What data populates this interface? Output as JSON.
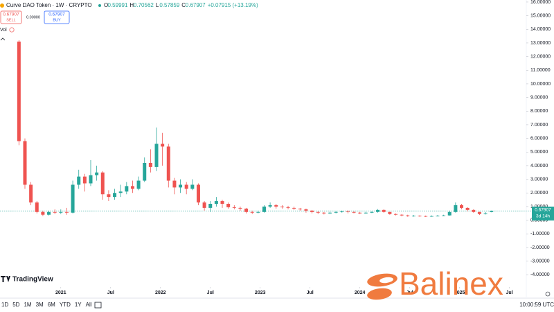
{
  "header": {
    "symbol": "Curve DAO Token · 1W · CRYPTO",
    "ohlc": [
      {
        "key": "O",
        "value": "0.59991"
      },
      {
        "key": "H",
        "value": "0.70562"
      },
      {
        "key": "L",
        "value": "0.57859"
      },
      {
        "key": "C",
        "value": "0.67907"
      }
    ],
    "change": "+0.07915 (+13.19%)"
  },
  "trade": {
    "sell_price": "0.67907",
    "sell": "SELL",
    "spread": "0.00000",
    "buy_price": "0.67907",
    "buy": "BUY"
  },
  "volume_label": "Vol",
  "price_tag": {
    "price": "0.67907",
    "countdown": "3d 14h"
  },
  "brand": "TradingView",
  "watermark": "Balinex",
  "toolbar": {
    "ranges": [
      "1D",
      "5D",
      "1M",
      "3M",
      "6M",
      "YTD",
      "1Y",
      "All"
    ],
    "time": "10:00:59 UTC"
  },
  "chart_data": {
    "type": "candlestick",
    "up_color": "#26a69a",
    "down_color": "#ef5350",
    "last_price": 0.67907,
    "grid": false,
    "xlim": [
      2020.39,
      2025.6
    ],
    "ylim": [
      -4.7,
      16.15
    ],
    "xticks": [
      {
        "value": 2021,
        "label": "2021"
      },
      {
        "value": 2021.5,
        "label": "Jul"
      },
      {
        "value": 2022,
        "label": "2022"
      },
      {
        "value": 2022.5,
        "label": "Jul"
      },
      {
        "value": 2023,
        "label": "2023"
      },
      {
        "value": 2023.5,
        "label": "Jul"
      },
      {
        "value": 2024,
        "label": "2024"
      },
      {
        "value": 2024.5,
        "label": "Jul"
      },
      {
        "value": 2025,
        "label": "2025"
      },
      {
        "value": 2025.5,
        "label": "Jul"
      }
    ],
    "yticks": [
      {
        "value": 16,
        "label": "16.00000"
      },
      {
        "value": 15,
        "label": "15.00000"
      },
      {
        "value": 14,
        "label": "14.00000"
      },
      {
        "value": 13,
        "label": "13.00000"
      },
      {
        "value": 12,
        "label": "12.00000"
      },
      {
        "value": 11,
        "label": "11.00000"
      },
      {
        "value": 10,
        "label": "10.00000"
      },
      {
        "value": 9,
        "label": "9.00000"
      },
      {
        "value": 8,
        "label": "8.00000"
      },
      {
        "value": 7,
        "label": "7.00000"
      },
      {
        "value": 6,
        "label": "6.00000"
      },
      {
        "value": 5,
        "label": "5.00000"
      },
      {
        "value": 4,
        "label": "4.00000"
      },
      {
        "value": 3,
        "label": "3.00000"
      },
      {
        "value": 2,
        "label": "2.00000"
      },
      {
        "value": 1,
        "label": "1.00000"
      },
      {
        "value": 0,
        "label": "0.00000"
      },
      {
        "value": -1,
        "label": "-1.00000"
      },
      {
        "value": -2,
        "label": "-2.00000"
      },
      {
        "value": -3,
        "label": "-3.00000"
      },
      {
        "value": -4,
        "label": "-4.00000"
      }
    ],
    "x": [
      2020.58,
      2020.64,
      2020.7,
      2020.76,
      2020.82,
      2020.88,
      2020.94,
      2021.0,
      2021.06,
      2021.12,
      2021.18,
      2021.24,
      2021.3,
      2021.36,
      2021.42,
      2021.48,
      2021.54,
      2021.6,
      2021.66,
      2021.72,
      2021.78,
      2021.84,
      2021.9,
      2021.96,
      2022.02,
      2022.08,
      2022.14,
      2022.2,
      2022.26,
      2022.32,
      2022.38,
      2022.44,
      2022.5,
      2022.56,
      2022.62,
      2022.68,
      2022.74,
      2022.8,
      2022.86,
      2022.92,
      2022.98,
      2023.04,
      2023.1,
      2023.16,
      2023.22,
      2023.28,
      2023.34,
      2023.4,
      2023.46,
      2023.52,
      2023.58,
      2023.64,
      2023.7,
      2023.76,
      2023.82,
      2023.88,
      2023.94,
      2024.0,
      2024.06,
      2024.12,
      2024.18,
      2024.24,
      2024.3,
      2024.36,
      2024.42,
      2024.48,
      2024.54,
      2024.6,
      2024.66,
      2024.72,
      2024.78,
      2024.84,
      2024.9,
      2024.96,
      2025.02,
      2025.08,
      2025.14,
      2025.2,
      2025.26,
      2025.32
    ],
    "open": [
      13.1,
      5.8,
      2.6,
      1.3,
      0.6,
      0.4,
      0.6,
      0.55,
      0.6,
      0.55,
      2.6,
      3.2,
      2.7,
      3.3,
      3.5,
      1.9,
      1.7,
      2.0,
      2.1,
      2.5,
      2.3,
      2.9,
      4.2,
      3.9,
      5.6,
      5.4,
      2.9,
      2.4,
      2.6,
      2.3,
      2.6,
      1.3,
      0.9,
      1.2,
      1.4,
      1.2,
      0.95,
      0.9,
      0.85,
      0.6,
      0.55,
      0.6,
      1.0,
      1.1,
      1.0,
      0.95,
      0.9,
      0.85,
      0.8,
      0.7,
      0.6,
      0.55,
      0.5,
      0.55,
      0.6,
      0.65,
      0.6,
      0.55,
      0.5,
      0.55,
      0.6,
      0.75,
      0.6,
      0.45,
      0.4,
      0.35,
      0.3,
      0.32,
      0.3,
      0.28,
      0.3,
      0.32,
      0.35,
      0.6,
      1.1,
      0.9,
      0.75,
      0.6,
      0.45,
      0.59991
    ],
    "high": [
      13.2,
      6.0,
      2.8,
      1.4,
      0.7,
      0.7,
      0.8,
      0.8,
      0.9,
      2.9,
      3.7,
      3.4,
      4.4,
      4.0,
      3.6,
      2.2,
      2.3,
      2.6,
      2.8,
      2.9,
      3.2,
      4.6,
      5.2,
      6.8,
      6.4,
      5.6,
      3.1,
      3.0,
      2.8,
      3.0,
      2.7,
      1.4,
      1.4,
      1.7,
      1.5,
      1.3,
      1.1,
      1.0,
      0.9,
      0.7,
      0.7,
      1.1,
      1.3,
      1.2,
      1.1,
      1.05,
      1.0,
      0.9,
      0.85,
      0.75,
      0.65,
      0.6,
      0.62,
      0.66,
      0.7,
      0.72,
      0.65,
      0.6,
      0.62,
      0.65,
      0.82,
      0.8,
      0.62,
      0.5,
      0.45,
      0.4,
      0.38,
      0.36,
      0.34,
      0.35,
      0.38,
      0.4,
      0.7,
      1.3,
      1.2,
      0.95,
      0.8,
      0.62,
      0.6,
      0.70562
    ],
    "low": [
      5.5,
      2.3,
      1.1,
      0.5,
      0.3,
      0.35,
      0.45,
      0.45,
      0.4,
      0.5,
      2.3,
      2.1,
      2.5,
      2.9,
      1.5,
      1.4,
      1.5,
      1.7,
      1.9,
      2.0,
      2.2,
      2.8,
      3.5,
      3.6,
      4.0,
      2.4,
      1.9,
      2.0,
      1.9,
      2.2,
      1.1,
      0.7,
      0.6,
      1.0,
      0.9,
      0.85,
      0.8,
      0.7,
      0.5,
      0.45,
      0.5,
      0.55,
      0.9,
      0.85,
      0.85,
      0.8,
      0.75,
      0.7,
      0.55,
      0.5,
      0.45,
      0.42,
      0.45,
      0.5,
      0.55,
      0.5,
      0.5,
      0.45,
      0.48,
      0.52,
      0.55,
      0.55,
      0.4,
      0.35,
      0.28,
      0.25,
      0.26,
      0.25,
      0.24,
      0.25,
      0.28,
      0.3,
      0.33,
      0.55,
      0.8,
      0.65,
      0.55,
      0.38,
      0.42,
      0.57859
    ],
    "close": [
      5.8,
      2.6,
      1.3,
      0.6,
      0.4,
      0.6,
      0.55,
      0.6,
      0.55,
      2.6,
      3.2,
      2.7,
      3.3,
      3.5,
      1.9,
      1.7,
      2.0,
      2.1,
      2.5,
      2.3,
      2.9,
      4.2,
      3.9,
      5.6,
      5.4,
      2.9,
      2.4,
      2.6,
      2.3,
      2.6,
      1.3,
      0.9,
      1.2,
      1.4,
      1.2,
      0.95,
      0.9,
      0.85,
      0.6,
      0.55,
      0.6,
      1.0,
      1.1,
      1.0,
      0.95,
      0.9,
      0.85,
      0.8,
      0.7,
      0.6,
      0.55,
      0.5,
      0.55,
      0.6,
      0.65,
      0.6,
      0.55,
      0.5,
      0.55,
      0.6,
      0.75,
      0.6,
      0.45,
      0.4,
      0.35,
      0.3,
      0.32,
      0.3,
      0.28,
      0.3,
      0.32,
      0.35,
      0.6,
      1.1,
      0.9,
      0.75,
      0.6,
      0.45,
      0.5,
      0.67907
    ]
  }
}
